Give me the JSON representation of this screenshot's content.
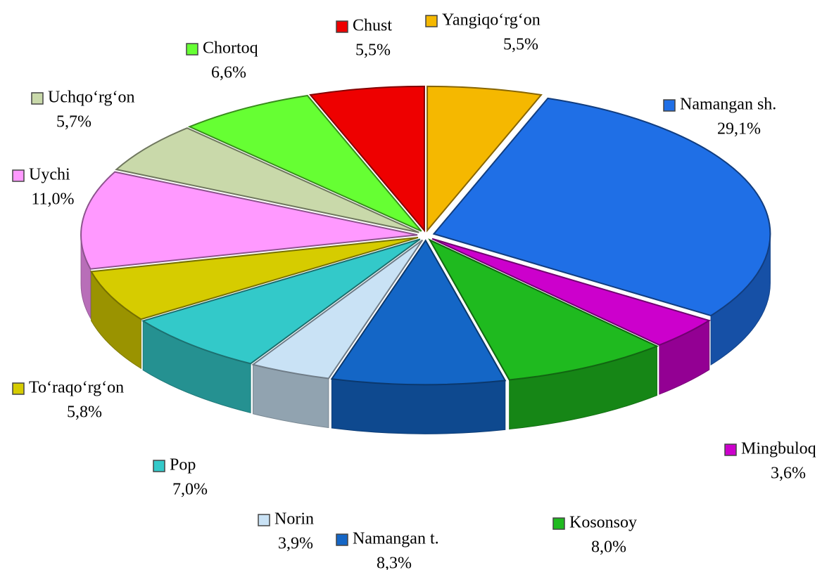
{
  "chart_data": {
    "type": "pie",
    "categories": [
      "Yangiqo‘rg‘on",
      "Namangan sh.",
      "Mingbuloq",
      "Kosonsoy",
      "Namangan t.",
      "Norin",
      "Pop",
      "To‘raqo‘rg‘on",
      "Uychi",
      "Uchqo‘rg‘on",
      "Chortoq",
      "Chust"
    ],
    "values": [
      5.5,
      29.1,
      3.6,
      8.0,
      8.3,
      3.9,
      7.0,
      5.8,
      11.0,
      5.7,
      6.6,
      5.5
    ],
    "value_labels": [
      "5,5%",
      "29,1%",
      "3,6%",
      "8,0%",
      "8,3%",
      "3,9%",
      "7,0%",
      "5,8%",
      "11,0%",
      "5,7%",
      "6,6%",
      "5,5%"
    ],
    "colors": [
      "#f5b800",
      "#1f6fe6",
      "#cc00cc",
      "#1fba1f",
      "#1466c6",
      "#c9e2f5",
      "#33c9c9",
      "#d6cc00",
      "#ff99ff",
      "#c9d9aa",
      "#66ff33",
      "#ee0000"
    ]
  }
}
